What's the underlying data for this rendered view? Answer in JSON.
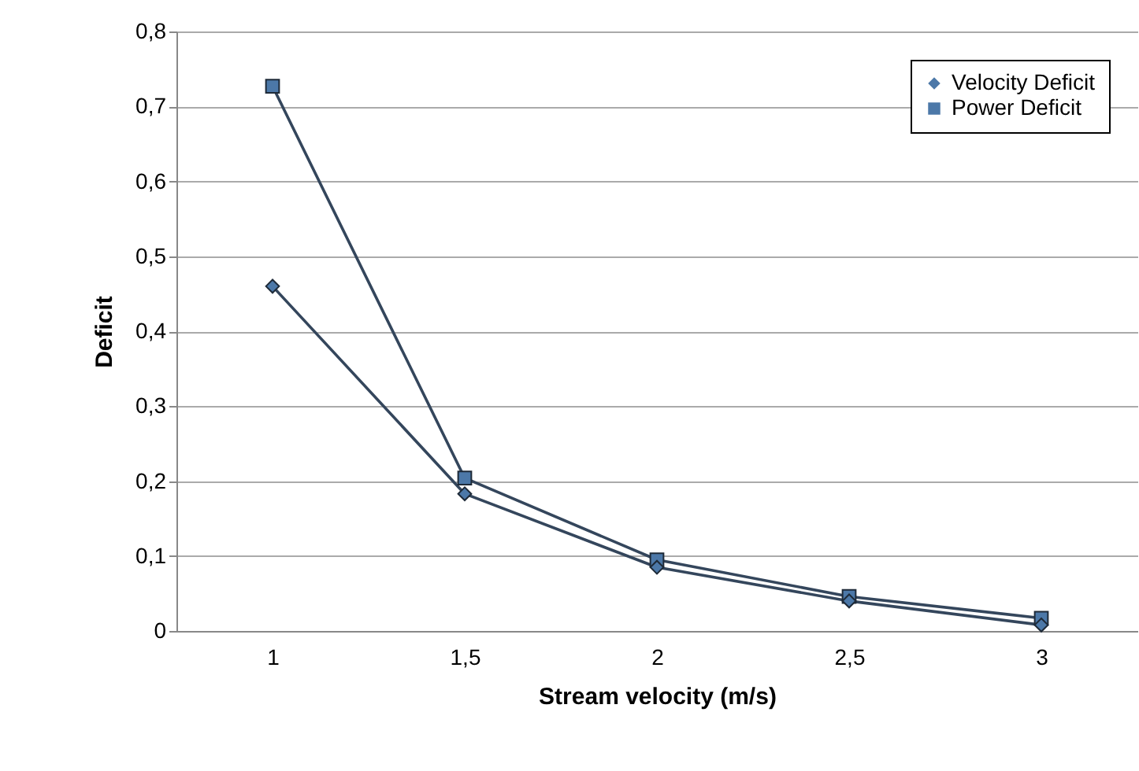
{
  "chart_data": {
    "type": "line",
    "xlabel": "Stream velocity (m/s)",
    "ylabel": "Deficit",
    "categories": [
      "1",
      "1,5",
      "2",
      "2,5",
      "3"
    ],
    "series": [
      {
        "name": "Velocity Deficit",
        "color": "#34465c",
        "marker": "diamond",
        "values": [
          0.46,
          0.183,
          0.085,
          0.04,
          0.008
        ]
      },
      {
        "name": "Power Deficit",
        "color": "#34465c",
        "marker": "square",
        "values": [
          0.727,
          0.204,
          0.095,
          0.046,
          0.017
        ]
      }
    ],
    "ylim": [
      0,
      0.8
    ],
    "yticks": [
      {
        "value": 0,
        "label": "0"
      },
      {
        "value": 0.1,
        "label": "0,1"
      },
      {
        "value": 0.2,
        "label": "0,2"
      },
      {
        "value": 0.3,
        "label": "0,3"
      },
      {
        "value": 0.4,
        "label": "0,4"
      },
      {
        "value": 0.5,
        "label": "0,5"
      },
      {
        "value": 0.6,
        "label": "0,6"
      },
      {
        "value": 0.7,
        "label": "0,7"
      },
      {
        "value": 0.8,
        "label": "0,8"
      }
    ],
    "grid": "y",
    "legend": "top right"
  }
}
